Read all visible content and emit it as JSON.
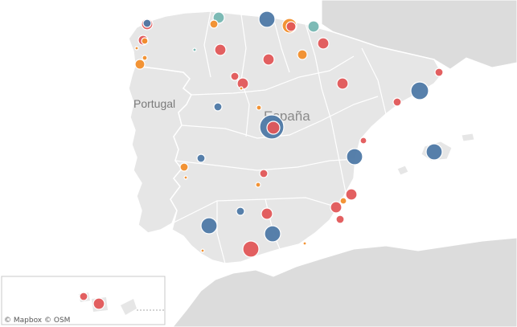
{
  "map": {
    "labels": {
      "portugal": "Portugal",
      "spain": "España"
    },
    "attribution": {
      "mapbox": "© Mapbox",
      "osm": "© OSM"
    },
    "colors": {
      "sea": "#ffffff",
      "land_spain_portugal": "#e6e6e6",
      "land_other": "#dcdcdc",
      "border": "#ffffff",
      "blue": "#4e79a7",
      "red": "#e15759",
      "orange": "#f28e2b",
      "teal": "#76b7b2"
    }
  },
  "markers": [
    {
      "place": "A Coruña",
      "color": "red",
      "size": 7
    },
    {
      "place": "Ferrol",
      "color": "blue",
      "size": 5
    },
    {
      "place": "Santiago",
      "color": "red",
      "size": 6
    },
    {
      "place": "Santiago",
      "color": "orange",
      "size": 4
    },
    {
      "place": "Vigo",
      "color": "orange",
      "size": 6
    },
    {
      "place": "Ourense",
      "color": "orange",
      "size": 2
    },
    {
      "place": "Pontevedra",
      "color": "orange",
      "size": 3
    },
    {
      "place": "Oviedo",
      "color": "teal",
      "size": 7
    },
    {
      "place": "Gijón",
      "color": "orange",
      "size": 5
    },
    {
      "place": "Santander",
      "color": "blue",
      "size": 10
    },
    {
      "place": "Bilbao",
      "color": "orange",
      "size": 9
    },
    {
      "place": "Bilbao",
      "color": "red",
      "size": 6
    },
    {
      "place": "San Sebastián",
      "color": "teal",
      "size": 7
    },
    {
      "place": "Vitoria",
      "color": "orange",
      "size": 6
    },
    {
      "place": "Pamplona",
      "color": "red",
      "size": 7
    },
    {
      "place": "Logroño",
      "color": "red",
      "size": 7
    },
    {
      "place": "Burgos",
      "color": "red",
      "size": 5
    },
    {
      "place": "León",
      "color": "red",
      "size": 7
    },
    {
      "place": "Palencia",
      "color": "teal",
      "size": 2
    },
    {
      "place": "Valladolid",
      "color": "red",
      "size": 7
    },
    {
      "place": "Zamora",
      "color": "orange",
      "size": 2
    },
    {
      "place": "Salamanca",
      "color": "blue",
      "size": 5
    },
    {
      "place": "Segovia",
      "color": "orange",
      "size": 3
    },
    {
      "place": "Madrid",
      "color": "blue",
      "size": 15
    },
    {
      "place": "Madrid",
      "color": "red",
      "size": 8
    },
    {
      "place": "Zaragoza",
      "color": "red",
      "size": 7
    },
    {
      "place": "Barcelona",
      "color": "blue",
      "size": 11
    },
    {
      "place": "Girona",
      "color": "red",
      "size": 5
    },
    {
      "place": "Tarragona",
      "color": "red",
      "size": 5
    },
    {
      "place": "Castellón",
      "color": "red",
      "size": 4
    },
    {
      "place": "Valencia",
      "color": "blue",
      "size": 10
    },
    {
      "place": "Palma",
      "color": "blue",
      "size": 10
    },
    {
      "place": "Alicante",
      "color": "red",
      "size": 7
    },
    {
      "place": "Elche",
      "color": "orange",
      "size": 4
    },
    {
      "place": "Murcia",
      "color": "red",
      "size": 7
    },
    {
      "place": "Cartagena",
      "color": "red",
      "size": 5
    },
    {
      "place": "Almería",
      "color": "orange",
      "size": 2
    },
    {
      "place": "Badajoz",
      "color": "blue",
      "size": 5
    },
    {
      "place": "Cáceres",
      "color": "orange",
      "size": 5
    },
    {
      "place": "Mérida",
      "color": "orange",
      "size": 2
    },
    {
      "place": "Ciudad Real",
      "color": "red",
      "size": 5
    },
    {
      "place": "Toledo",
      "color": "orange",
      "size": 3
    },
    {
      "place": "Jaén",
      "color": "red",
      "size": 7
    },
    {
      "place": "Córdoba",
      "color": "blue",
      "size": 5
    },
    {
      "place": "Sevilla",
      "color": "blue",
      "size": 10
    },
    {
      "place": "Granada",
      "color": "blue",
      "size": 10
    },
    {
      "place": "Málaga",
      "color": "red",
      "size": 10
    },
    {
      "place": "Cádiz",
      "color": "orange",
      "size": 2
    },
    {
      "place": "Las Palmas",
      "color": "red",
      "size": 5
    },
    {
      "place": "Santa Cruz de Tenerife",
      "color": "red",
      "size": 7
    }
  ]
}
